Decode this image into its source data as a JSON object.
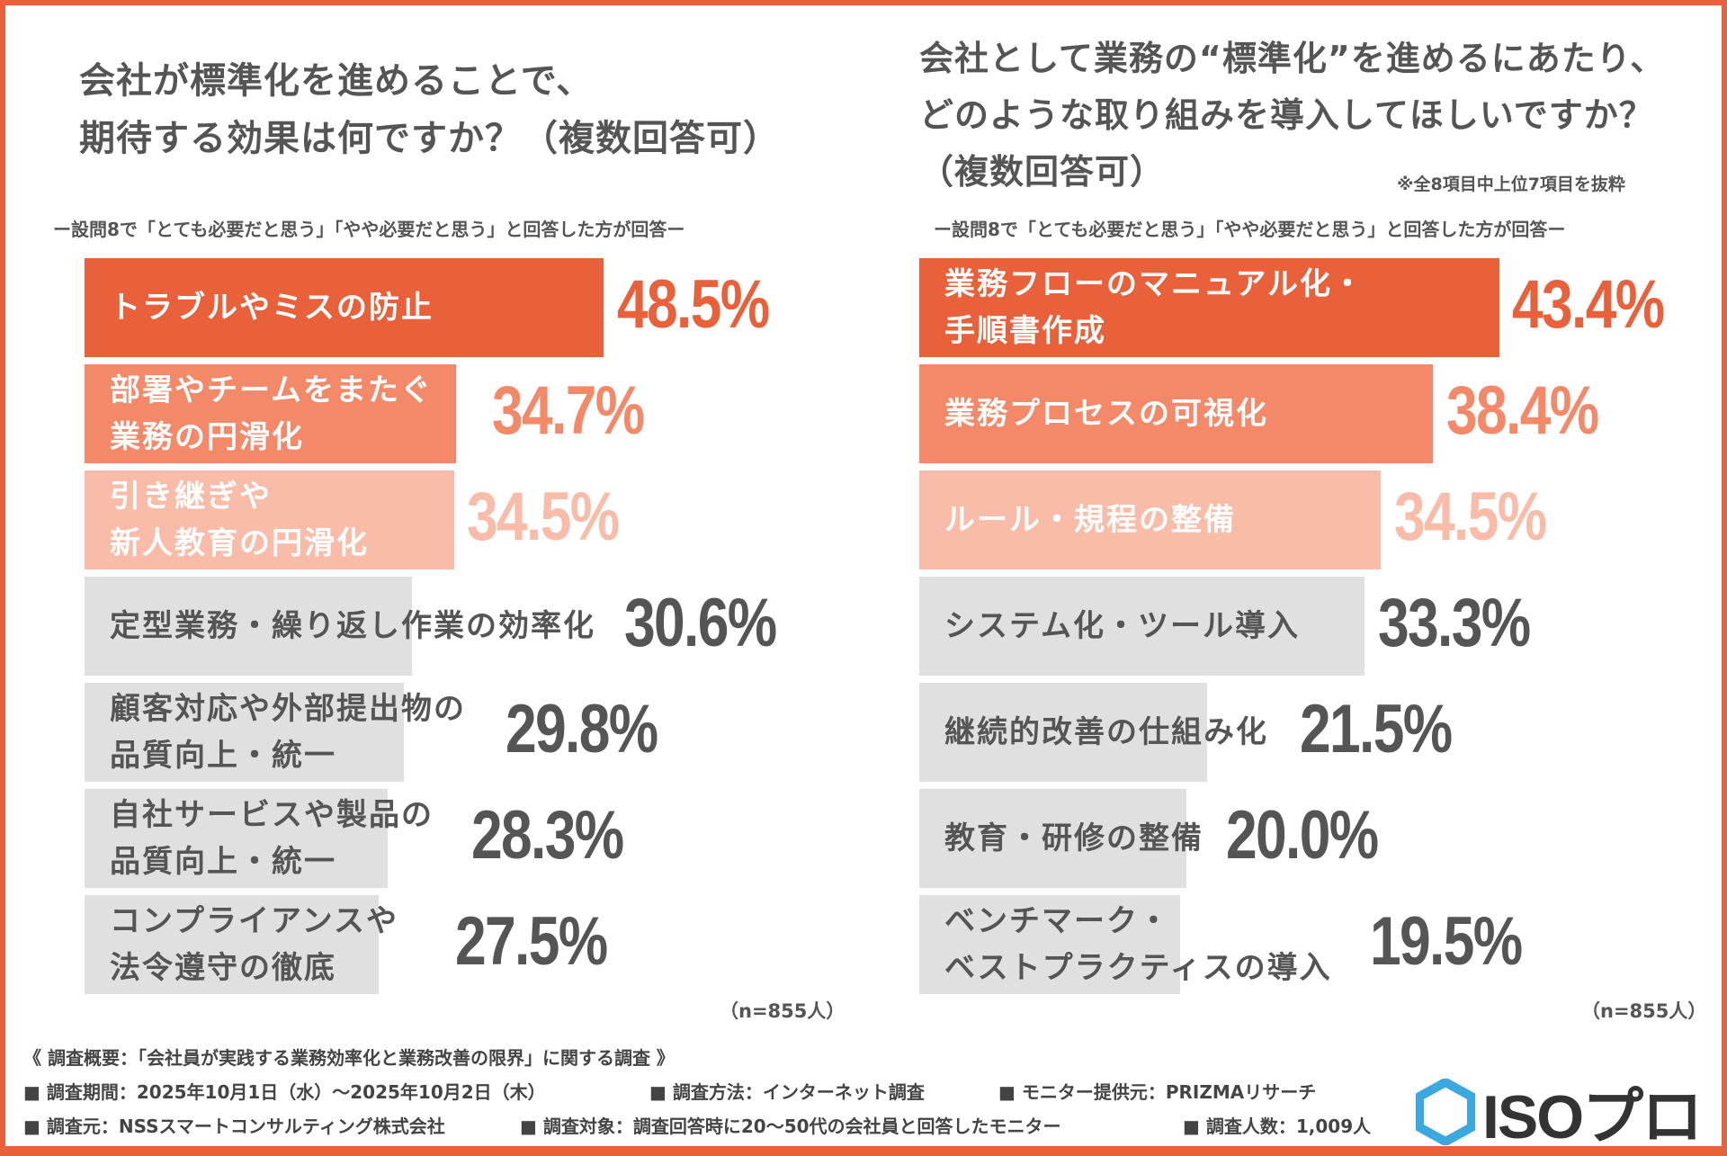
{
  "colors": {
    "top": "#E8613A",
    "second": "#F4896A",
    "third": "#F9BCA8",
    "other": "#E0E0E0",
    "dark_text": "#555555"
  },
  "chart_data": [
    {
      "type": "bar",
      "orientation": "horizontal",
      "title": "会社が標準化を進めることで、\n期待する効果は何ですか？（複数回答可）",
      "subtitle": "ー設問8で「とても必要だと思う」「やや必要だと思う」と回答した方が回答ー",
      "categories": [
        "トラブルやミスの防止",
        "部署やチームをまたぐ\n業務の円滑化",
        "引き継ぎや\n新人教育の円滑化",
        "定型業務・繰り返し作業の効率化",
        "顧客対応や外部提出物の\n品質向上・統一",
        "自社サービスや製品の\n品質向上・統一",
        "コンプライアンスや\n法令遵守の徹底"
      ],
      "values": [
        48.5,
        34.7,
        34.5,
        30.6,
        29.8,
        28.3,
        27.5
      ],
      "value_labels": [
        "48.5%",
        "34.7%",
        "34.5%",
        "30.6%",
        "29.8%",
        "28.3%",
        "27.5%"
      ],
      "unit": "%",
      "sample": "（n=855人）"
    },
    {
      "type": "bar",
      "orientation": "horizontal",
      "title": "会社として業務の“標準化”を進めるにあたり、\nどのような取り組みを導入してほしいですか？\n（複数回答可）",
      "note": "※全8項目中上位7項目を抜粋",
      "subtitle": "ー設問8で「とても必要だと思う」「やや必要だと思う」と回答した方が回答ー",
      "categories": [
        "業務フローのマニュアル化・\n手順書作成",
        "業務プロセスの可視化",
        "ルール・規程の整備",
        "システム化・ツール導入",
        "継続的改善の仕組み化",
        "教育・研修の整備",
        "ベンチマーク・\nベストプラクティスの導入"
      ],
      "values": [
        43.4,
        38.4,
        34.5,
        33.3,
        21.5,
        20.0,
        19.5
      ],
      "value_labels": [
        "43.4%",
        "38.4%",
        "34.5%",
        "33.3%",
        "21.5%",
        "20.0%",
        "19.5%"
      ],
      "unit": "%",
      "sample": "（n=855人）"
    }
  ],
  "footer": {
    "overview": "《 調査概要：「会社員が実践する業務効率化と業務改善の限界」に関する調査 》",
    "line2": [
      "■ 調査期間：2025年10月1日（水）〜2025年10月2日（木）",
      "■ 調査方法：インターネット調査",
      "■ モニター提供元：PRIZMAリサーチ"
    ],
    "line3": [
      "■ 調査元：NSSスマートコンサルティング株式会社",
      "■ 調査対象：調査回答時に20〜50代の会社員と回答したモニター",
      "■ 調査人数：1,009人"
    ]
  },
  "logo": {
    "text": "ISOプロ",
    "icon": "hexagon-logo-icon"
  }
}
